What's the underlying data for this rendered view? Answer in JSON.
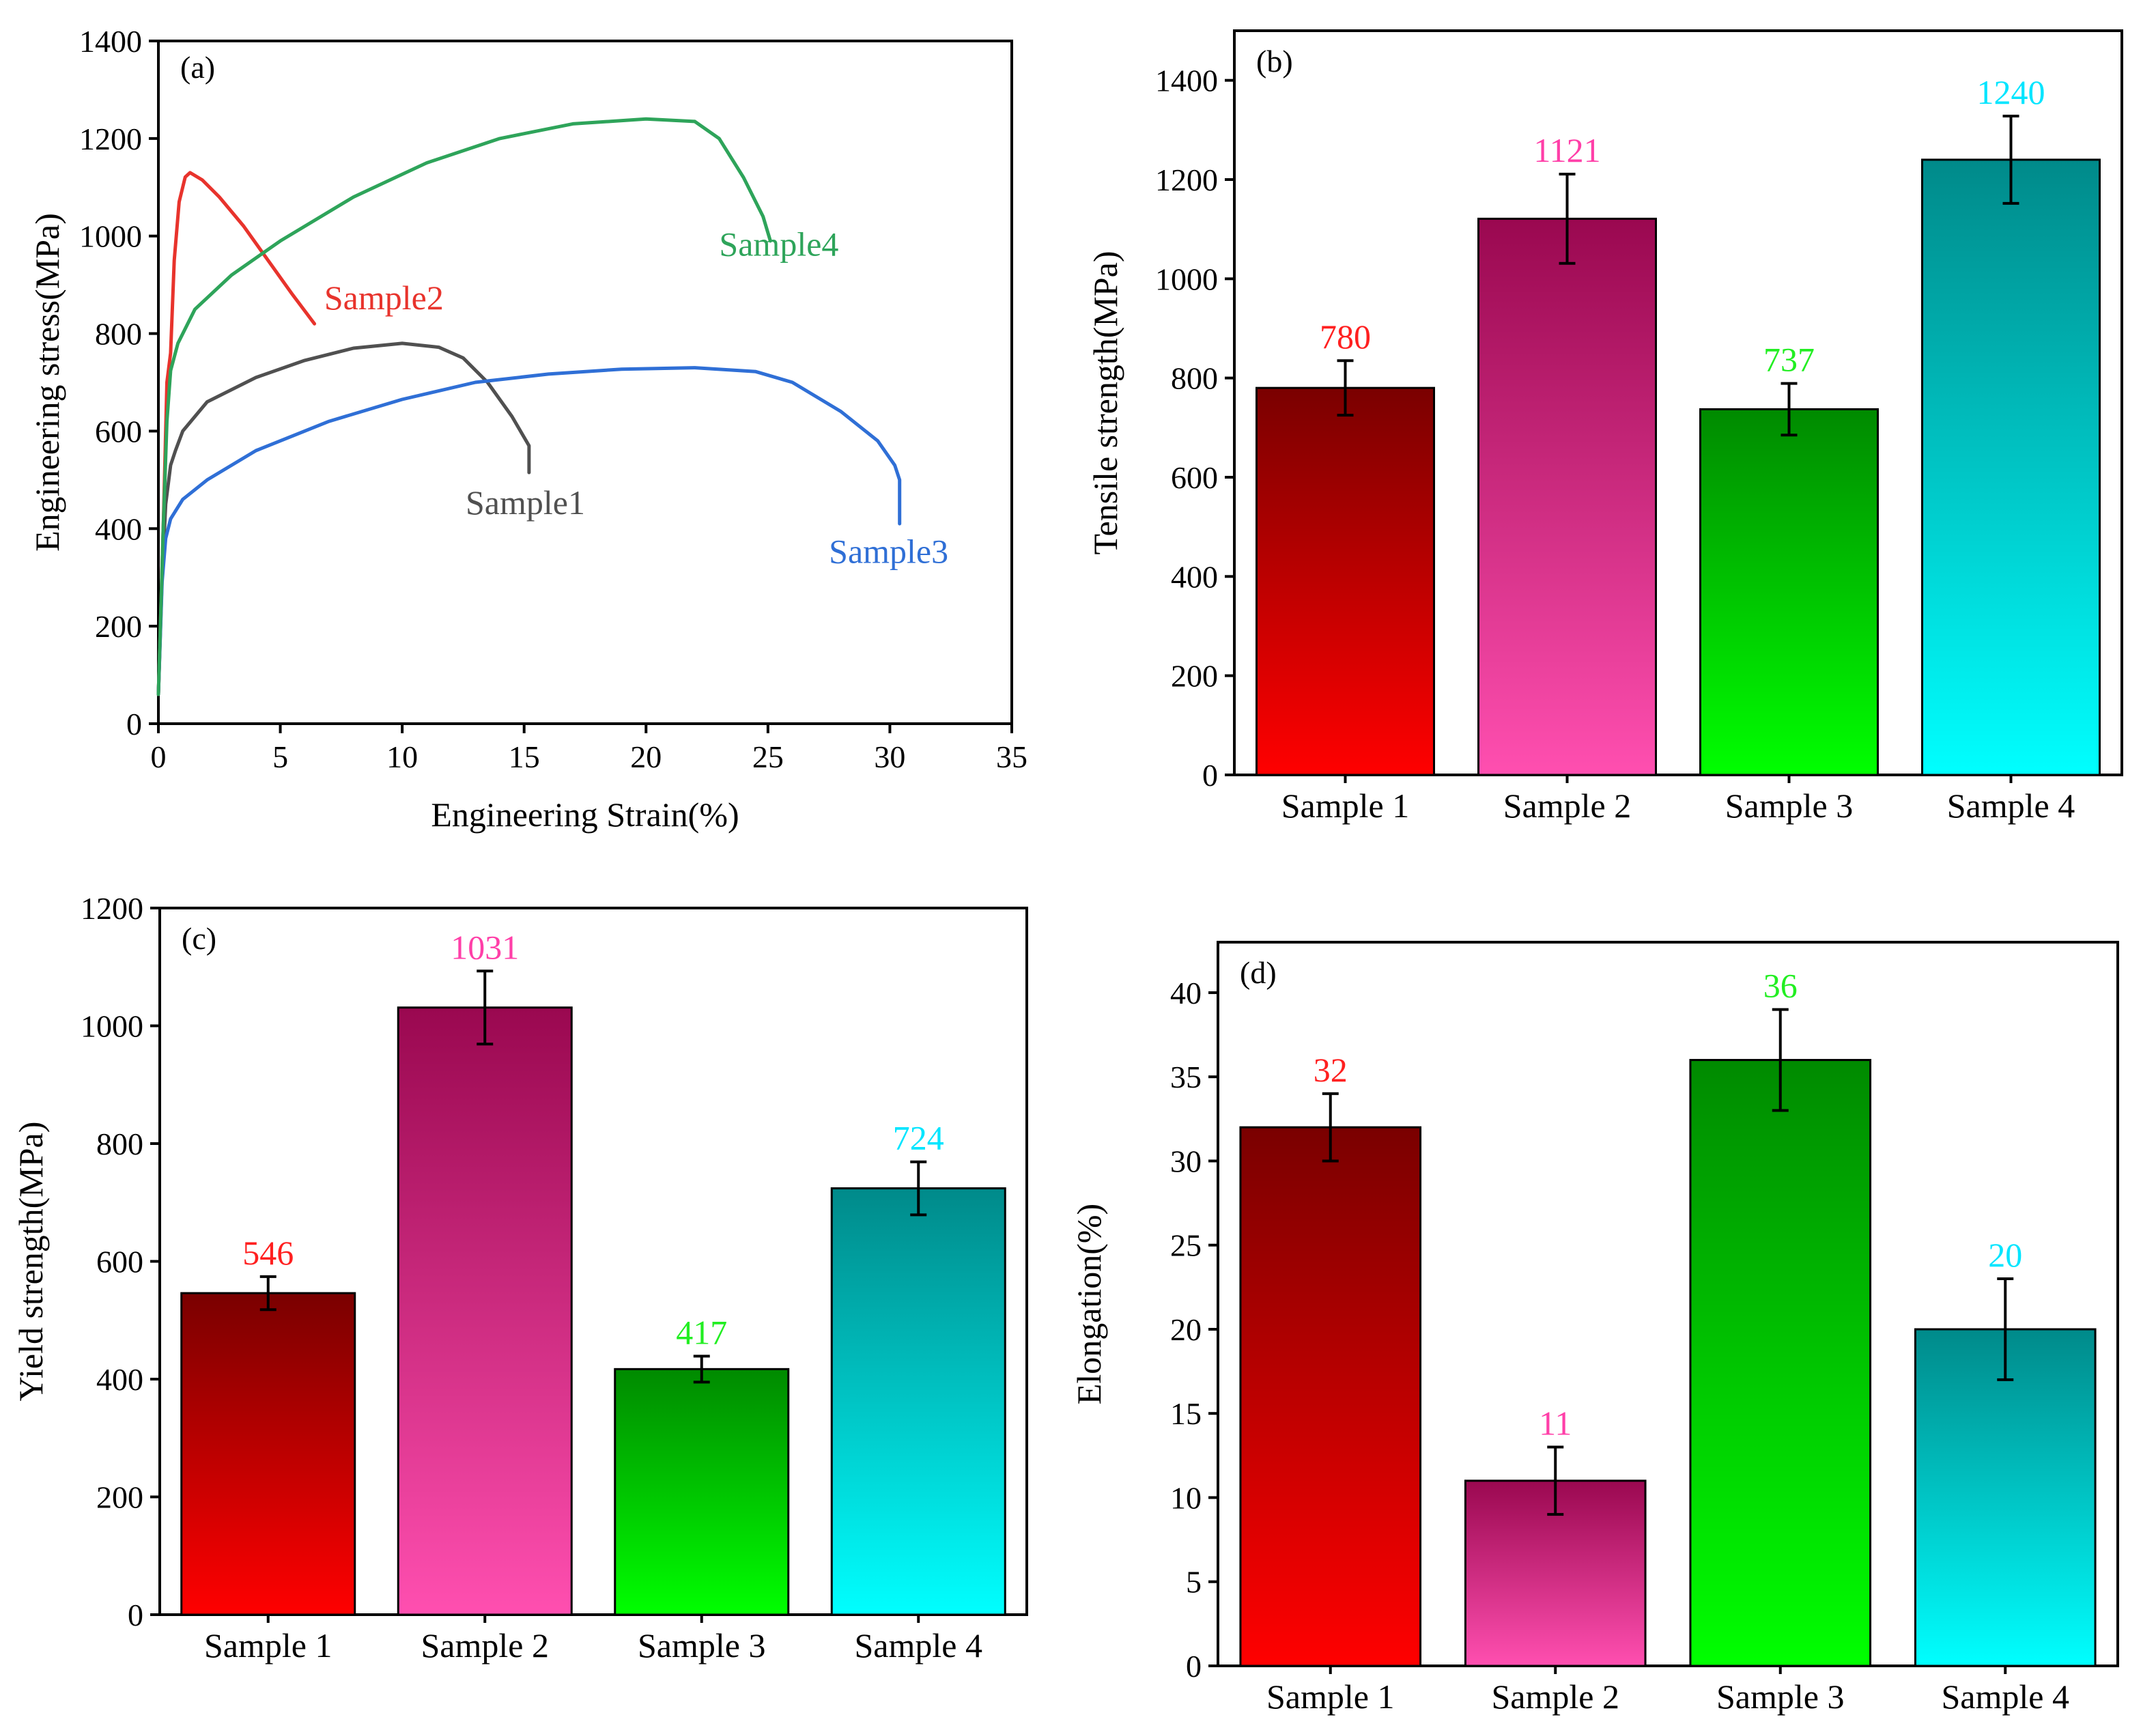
{
  "chart_data": [
    {
      "panel": "(a)",
      "type": "line",
      "xlabel": "Engineering Strain(%)",
      "ylabel": "Engineering stress(MPa)",
      "xlim": [
        0,
        35
      ],
      "ylim": [
        0,
        1400
      ],
      "xticks": [
        0,
        5,
        10,
        15,
        20,
        25,
        30,
        35
      ],
      "yticks": [
        0,
        200,
        400,
        600,
        800,
        1000,
        1200,
        1400
      ],
      "series": [
        {
          "name": "Sample1",
          "color": "#505050",
          "points": [
            [
              0,
              60
            ],
            [
              0.15,
              300
            ],
            [
              0.3,
              450
            ],
            [
              0.5,
              530
            ],
            [
              0.7,
              560
            ],
            [
              1,
              600
            ],
            [
              2,
              660
            ],
            [
              4,
              710
            ],
            [
              6,
              745
            ],
            [
              8,
              770
            ],
            [
              10,
              780
            ],
            [
              11.5,
              772
            ],
            [
              12.5,
              750
            ],
            [
              13.5,
              700
            ],
            [
              14.5,
              630
            ],
            [
              15.2,
              570
            ],
            [
              15.2,
              515
            ]
          ]
        },
        {
          "name": "Sample2",
          "color": "#e8332c",
          "points": [
            [
              0,
              60
            ],
            [
              0.2,
              400
            ],
            [
              0.35,
              700
            ],
            [
              0.5,
              760
            ],
            [
              0.65,
              950
            ],
            [
              0.85,
              1070
            ],
            [
              1.1,
              1121
            ],
            [
              1.3,
              1130
            ],
            [
              1.8,
              1115
            ],
            [
              2.5,
              1080
            ],
            [
              3.5,
              1020
            ],
            [
              4.5,
              950
            ],
            [
              5.5,
              880
            ],
            [
              6.4,
              820
            ]
          ]
        },
        {
          "name": "Sample3",
          "color": "#2f6fd6",
          "points": [
            [
              0,
              60
            ],
            [
              0.15,
              290
            ],
            [
              0.3,
              380
            ],
            [
              0.5,
              420
            ],
            [
              1,
              460
            ],
            [
              2,
              500
            ],
            [
              4,
              560
            ],
            [
              7,
              620
            ],
            [
              10,
              665
            ],
            [
              13,
              700
            ],
            [
              16,
              717
            ],
            [
              19,
              727
            ],
            [
              22,
              730
            ],
            [
              24.5,
              722
            ],
            [
              26,
              700
            ],
            [
              28,
              640
            ],
            [
              29.5,
              580
            ],
            [
              30.2,
              530
            ],
            [
              30.4,
              500
            ],
            [
              30.4,
              410
            ]
          ]
        },
        {
          "name": "Sample4",
          "color": "#2ea45a",
          "points": [
            [
              0,
              60
            ],
            [
              0.2,
              400
            ],
            [
              0.35,
              620
            ],
            [
              0.5,
              724
            ],
            [
              0.8,
              780
            ],
            [
              1.5,
              850
            ],
            [
              3,
              920
            ],
            [
              5,
              990
            ],
            [
              8,
              1080
            ],
            [
              11,
              1150
            ],
            [
              14,
              1200
            ],
            [
              17,
              1230
            ],
            [
              20,
              1240
            ],
            [
              22,
              1235
            ],
            [
              23,
              1200
            ],
            [
              24,
              1120
            ],
            [
              24.8,
              1040
            ],
            [
              25.1,
              990
            ]
          ]
        }
      ],
      "annotations": [
        "Sample1",
        "Sample2",
        "Sample3",
        "Sample4"
      ]
    },
    {
      "panel": "(b)",
      "type": "bar",
      "ylabel": "Tensile strength(MPa)",
      "ylim": [
        0,
        1500
      ],
      "yticks": [
        0,
        200,
        400,
        600,
        800,
        1000,
        1200,
        1400
      ],
      "categories": [
        "Sample 1",
        "Sample 2",
        "Sample 3",
        "Sample 4"
      ],
      "values": [
        780,
        1121,
        737,
        1240
      ],
      "errors": [
        55,
        90,
        52,
        88
      ],
      "value_labels": [
        "780",
        "1121",
        "737",
        "1240"
      ]
    },
    {
      "panel": "(c)",
      "type": "bar",
      "ylabel": "Yield strength(MPa)",
      "ylim": [
        0,
        1200
      ],
      "yticks": [
        0,
        200,
        400,
        600,
        800,
        1000,
        1200
      ],
      "categories": [
        "Sample 1",
        "Sample 2",
        "Sample 3",
        "Sample 4"
      ],
      "values": [
        546,
        1031,
        417,
        724
      ],
      "errors": [
        28,
        62,
        22,
        45
      ],
      "value_labels": [
        "546",
        "1031",
        "417",
        "724"
      ]
    },
    {
      "panel": "(d)",
      "type": "bar",
      "ylabel": "Elongation(%)",
      "ylim": [
        0,
        43
      ],
      "yticks": [
        0,
        5,
        10,
        15,
        20,
        25,
        30,
        35,
        40
      ],
      "categories": [
        "Sample 1",
        "Sample 2",
        "Sample 3",
        "Sample 4"
      ],
      "values": [
        32,
        11,
        36,
        20
      ],
      "errors": [
        2,
        2,
        3,
        3
      ],
      "value_labels": [
        "32",
        "11",
        "36",
        "20"
      ]
    }
  ],
  "sample_colors": [
    {
      "top": "#7a0000",
      "bottom": "#ff0000",
      "label": "#ff2020"
    },
    {
      "top": "#9a0850",
      "bottom": "#ff4fb0",
      "label": "#ff3fa8"
    },
    {
      "top": "#008a00",
      "bottom": "#00ff00",
      "label": "#22ee22"
    },
    {
      "top": "#008a8a",
      "bottom": "#00ffff",
      "label": "#00e5ff"
    }
  ]
}
